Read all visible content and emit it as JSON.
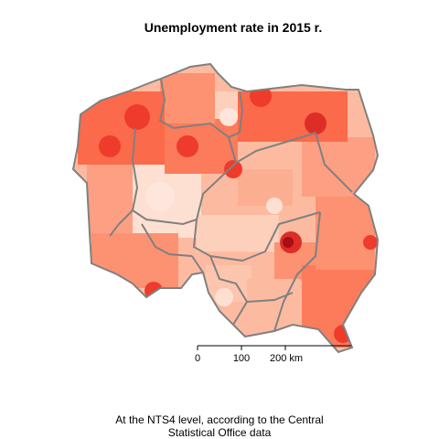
{
  "title": "Unemployment rate in 2015 r.",
  "caption": "At the NTS4 level, according to the Central Statistical Office data",
  "caption_lines": [
    "At the NTS4 level, according to the Central",
    "Statistical Office data"
  ],
  "colors": {
    "low": "#fee0d2",
    "mid": "#fc9272",
    "high": "#de2d26",
    "highest": "#a50f15",
    "border": "#808080",
    "inner_border": "#ffffff"
  },
  "scale_bar": {
    "labels": [
      "0",
      "100",
      "200 km"
    ]
  },
  "map": {
    "region": "Poland",
    "level": "NTS4",
    "hotspots": [
      {
        "name": "northern-pomerania",
        "level": "high"
      },
      {
        "name": "warmia-masuria",
        "level": "high"
      },
      {
        "name": "west-pomerania",
        "level": "high"
      },
      {
        "name": "kuyavia",
        "level": "high"
      },
      {
        "name": "radom-area",
        "level": "highest"
      },
      {
        "name": "lower-silesia-southwest",
        "level": "high"
      },
      {
        "name": "subcarpathia-south",
        "level": "high"
      }
    ]
  }
}
